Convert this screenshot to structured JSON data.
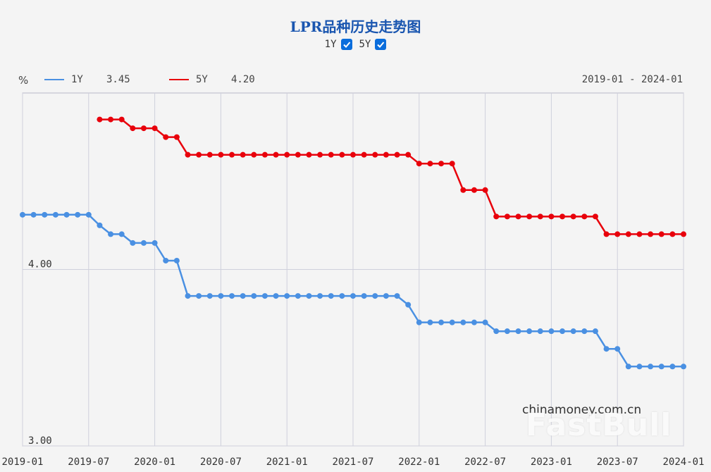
{
  "title": "LPR品种历史走势图",
  "toggles": [
    {
      "label": "1Y",
      "checked": true
    },
    {
      "label": "5Y",
      "checked": true
    }
  ],
  "legend": {
    "unit": "%",
    "items": [
      {
        "name": "1Y",
        "value": "3.45",
        "color": "#4a90e2"
      },
      {
        "name": "5Y",
        "value": "4.20",
        "color": "#e8000b"
      }
    ],
    "range": "2019-01 - 2024-01"
  },
  "watermark": "chinamoney.com.cn",
  "overlay_logo": "FastBull",
  "chart_data": {
    "type": "line",
    "x_ticks": [
      "2019-01",
      "2019-07",
      "2020-01",
      "2020-07",
      "2021-01",
      "2021-07",
      "2022-01",
      "2022-07",
      "2023-01",
      "2023-07",
      "2024-01"
    ],
    "y_ticks": [
      "4.00",
      "3.00"
    ],
    "series": [
      {
        "name": "1Y",
        "color": "#4a90e2",
        "values": [
          4.31,
          4.31,
          4.31,
          4.31,
          4.31,
          4.31,
          4.31,
          4.25,
          4.2,
          4.2,
          4.15,
          4.15,
          4.15,
          4.05,
          4.05,
          3.85,
          3.85,
          3.85,
          3.85,
          3.85,
          3.85,
          3.85,
          3.85,
          3.85,
          3.85,
          3.85,
          3.85,
          3.85,
          3.85,
          3.85,
          3.85,
          3.85,
          3.85,
          3.85,
          3.85,
          3.8,
          3.7,
          3.7,
          3.7,
          3.7,
          3.7,
          3.7,
          3.7,
          3.65,
          3.65,
          3.65,
          3.65,
          3.65,
          3.65,
          3.65,
          3.65,
          3.65,
          3.65,
          3.55,
          3.55,
          3.45,
          3.45,
          3.45,
          3.45,
          3.45,
          3.45
        ]
      },
      {
        "name": "5Y",
        "color": "#e8000b",
        "values": [
          null,
          null,
          null,
          null,
          null,
          null,
          null,
          4.85,
          4.85,
          4.85,
          4.8,
          4.8,
          4.8,
          4.75,
          4.75,
          4.65,
          4.65,
          4.65,
          4.65,
          4.65,
          4.65,
          4.65,
          4.65,
          4.65,
          4.65,
          4.65,
          4.65,
          4.65,
          4.65,
          4.65,
          4.65,
          4.65,
          4.65,
          4.65,
          4.65,
          4.65,
          4.6,
          4.6,
          4.6,
          4.6,
          4.45,
          4.45,
          4.45,
          4.3,
          4.3,
          4.3,
          4.3,
          4.3,
          4.3,
          4.3,
          4.3,
          4.3,
          4.3,
          4.2,
          4.2,
          4.2,
          4.2,
          4.2,
          4.2,
          4.2,
          4.2
        ]
      }
    ],
    "ylim": [
      3.0,
      5.0
    ],
    "grid": true
  }
}
